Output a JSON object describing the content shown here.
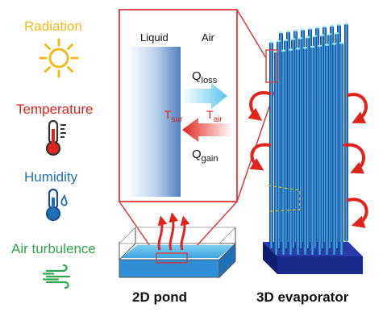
{
  "factors": {
    "radiation": {
      "label": "Radiation",
      "color": "#f2b91c",
      "icon": "sun-icon"
    },
    "temperature": {
      "label": "Temperature",
      "color": "#e0231c",
      "icon": "thermometer-icon"
    },
    "humidity": {
      "label": "Humidity",
      "color": "#1f6fb4",
      "icon": "thermometer-droplet-icon"
    },
    "turbulence": {
      "label": "Air turbulence",
      "color": "#2aa84a",
      "icon": "wind-icon"
    }
  },
  "inset": {
    "liquid_label": "Liquid",
    "air_label": "Air",
    "q_loss": {
      "main": "Q",
      "sub": "loss"
    },
    "q_gain": {
      "main": "Q",
      "sub": "gain"
    },
    "t_sur": {
      "main": "T",
      "sub": "sur"
    },
    "t_air": {
      "main": "T",
      "sub": "air"
    },
    "frame_color": "#d83a3a"
  },
  "captions": {
    "pond": "2D pond",
    "evaporator_3d": "3D",
    "evaporator_rest": " evaporator"
  }
}
